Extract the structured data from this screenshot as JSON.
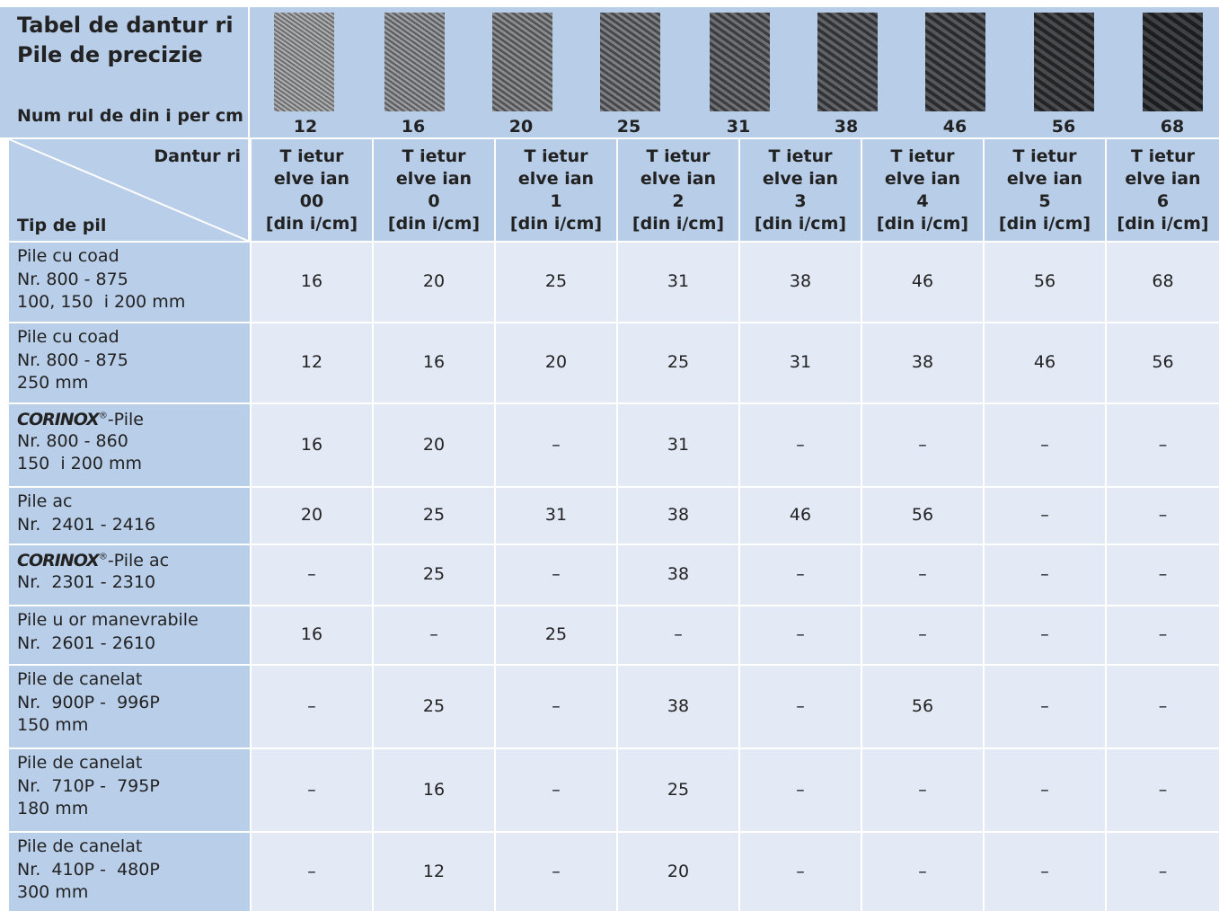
{
  "header": {
    "title_lines": [
      "Tabel de dantur ri",
      "Pile de precizie"
    ],
    "teeth_label": "Num rul de din i per cm",
    "samples": [
      12,
      16,
      20,
      25,
      31,
      38,
      46,
      56,
      68
    ]
  },
  "table": {
    "corner_top": "Dantur ri",
    "corner_bottom": "Tip de pil",
    "columns": [
      {
        "lines": [
          "T ietur",
          "elve ian",
          "00",
          "[din i/cm]"
        ]
      },
      {
        "lines": [
          "T ietur",
          "elve ian",
          "0",
          "[din i/cm]"
        ]
      },
      {
        "lines": [
          "T ietur",
          "elve ian",
          "1",
          "[din i/cm]"
        ]
      },
      {
        "lines": [
          "T ietur",
          "elve ian",
          "2",
          "[din i/cm]"
        ]
      },
      {
        "lines": [
          "T ietur",
          "elve ian",
          "3",
          "[din i/cm]"
        ]
      },
      {
        "lines": [
          "T ietur",
          "elve ian",
          "4",
          "[din i/cm]"
        ]
      },
      {
        "lines": [
          "T ietur",
          "elve ian",
          "5",
          "[din i/cm]"
        ]
      },
      {
        "lines": [
          "T ietur",
          "elve ian",
          "6",
          "[din i/cm]"
        ]
      }
    ],
    "rows": [
      {
        "label": [
          "Pile cu coad",
          "Nr. 800 - 875",
          "100, 150  i 200 mm"
        ],
        "cells": [
          16,
          20,
          25,
          31,
          38,
          46,
          56,
          68
        ]
      },
      {
        "label": [
          "Pile cu coad",
          "Nr. 800 - 875",
          "250 mm"
        ],
        "cells": [
          12,
          16,
          20,
          25,
          31,
          38,
          46,
          56
        ]
      },
      {
        "brand": "CORINOX",
        "brand_mark": "®",
        "brand_suffix": "-Pile",
        "label": [
          "Nr. 800 - 860",
          "150  i 200 mm"
        ],
        "cells": [
          16,
          20,
          "–",
          31,
          "–",
          "–",
          "–",
          "–"
        ]
      },
      {
        "label": [
          "Pile ac",
          "Nr.  2401 - 2416"
        ],
        "cells": [
          20,
          25,
          31,
          38,
          46,
          56,
          "–",
          "–"
        ]
      },
      {
        "brand": "CORINOX",
        "brand_mark": "®",
        "brand_suffix": "-Pile ac",
        "label": [
          "Nr.  2301 - 2310"
        ],
        "cells": [
          "–",
          25,
          "–",
          38,
          "–",
          "–",
          "–",
          "–"
        ]
      },
      {
        "label": [
          "Pile u or manevrabile",
          "Nr.  2601 - 2610"
        ],
        "cells": [
          16,
          "–",
          25,
          "–",
          "–",
          "–",
          "–",
          "–"
        ]
      },
      {
        "label": [
          "Pile de canelat",
          "Nr.  900P -  996P",
          "150 mm"
        ],
        "cells": [
          "–",
          25,
          "–",
          38,
          "–",
          56,
          "–",
          "–"
        ]
      },
      {
        "label": [
          "Pile de canelat",
          "Nr.  710P -  795P",
          "180 mm"
        ],
        "cells": [
          "–",
          16,
          "–",
          25,
          "–",
          "–",
          "–",
          "–"
        ]
      },
      {
        "label": [
          "Pile de canelat",
          "Nr.  410P -  480P",
          "300 mm"
        ],
        "cells": [
          "–",
          12,
          "–",
          20,
          "–",
          "–",
          "–",
          "–"
        ]
      }
    ]
  }
}
